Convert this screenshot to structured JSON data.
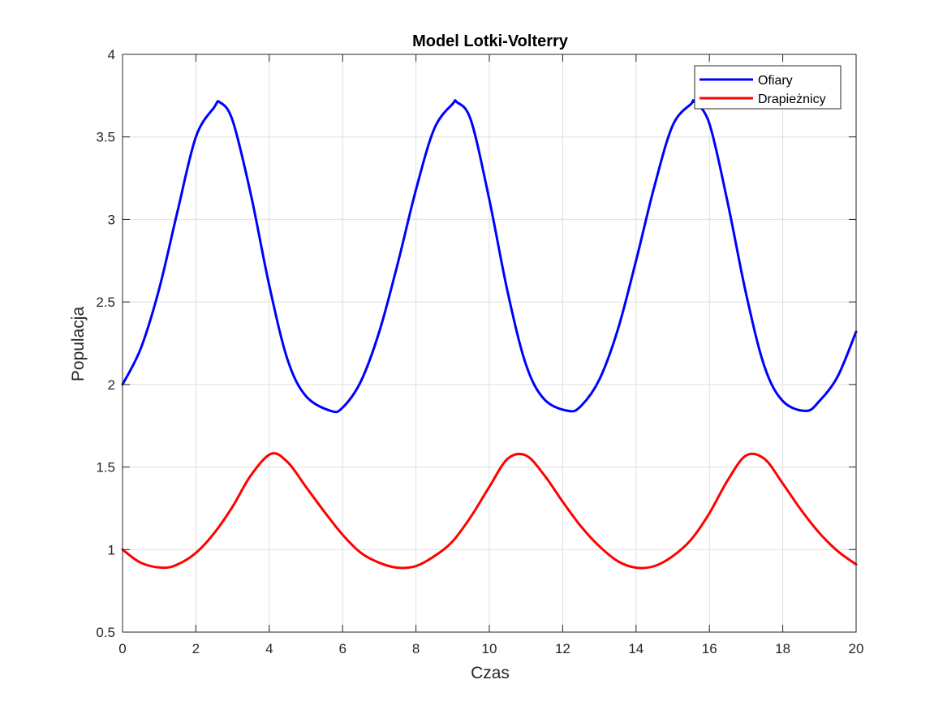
{
  "chart_data": {
    "type": "line",
    "title": "Model Lotki-Volterry",
    "xlabel": "Czas",
    "ylabel": "Populacja",
    "xlim": [
      0,
      20
    ],
    "ylim": [
      0.5,
      4
    ],
    "xticks": [
      "0",
      "2",
      "4",
      "6",
      "8",
      "10",
      "12",
      "14",
      "16",
      "18",
      "20"
    ],
    "yticks": [
      "0.5",
      "1",
      "1.5",
      "2",
      "2.5",
      "3",
      "3.5",
      "4"
    ],
    "grid": true,
    "legend_position": "top-right",
    "series": [
      {
        "name": "Ofiary",
        "color": "#0000ff",
        "x": [
          0,
          0.5,
          1,
          1.5,
          2,
          2.5,
          2.65,
          3,
          3.5,
          4,
          4.5,
          5,
          5.68,
          6,
          6.5,
          7,
          7.5,
          8,
          8.5,
          9,
          9.12,
          9.5,
          10,
          10.5,
          11,
          11.5,
          12.15,
          12.5,
          13,
          13.5,
          14,
          14.5,
          15,
          15.5,
          15.6,
          16,
          16.5,
          17,
          17.5,
          18,
          18.63,
          19,
          19.5,
          20
        ],
        "y": [
          2.0,
          2.22,
          2.58,
          3.05,
          3.5,
          3.68,
          3.71,
          3.6,
          3.15,
          2.6,
          2.15,
          1.93,
          1.84,
          1.86,
          2.02,
          2.32,
          2.73,
          3.18,
          3.55,
          3.7,
          3.71,
          3.6,
          3.12,
          2.56,
          2.12,
          1.91,
          1.84,
          1.87,
          2.03,
          2.33,
          2.75,
          3.2,
          3.57,
          3.7,
          3.71,
          3.58,
          3.1,
          2.55,
          2.11,
          1.9,
          1.84,
          1.9,
          2.05,
          2.32
        ]
      },
      {
        "name": "Drapieżnicy",
        "color": "#ff0000",
        "x": [
          0,
          0.5,
          1.08,
          1.5,
          2,
          2.5,
          3,
          3.5,
          4.05,
          4.5,
          5,
          5.5,
          6,
          6.5,
          7,
          7.5,
          8,
          8.5,
          9,
          9.5,
          10,
          10.5,
          11,
          11.5,
          12,
          12.5,
          13,
          13.5,
          14.0,
          14.5,
          15,
          15.5,
          16,
          16.5,
          17,
          17.5,
          18,
          18.5,
          19,
          19.5,
          20
        ],
        "y": [
          1.0,
          0.92,
          0.89,
          0.91,
          0.98,
          1.1,
          1.26,
          1.45,
          1.58,
          1.53,
          1.38,
          1.23,
          1.09,
          0.98,
          0.92,
          0.89,
          0.9,
          0.96,
          1.05,
          1.2,
          1.38,
          1.55,
          1.57,
          1.45,
          1.29,
          1.14,
          1.02,
          0.93,
          0.89,
          0.9,
          0.96,
          1.06,
          1.22,
          1.42,
          1.57,
          1.55,
          1.4,
          1.24,
          1.1,
          0.99,
          0.91
        ]
      }
    ]
  }
}
